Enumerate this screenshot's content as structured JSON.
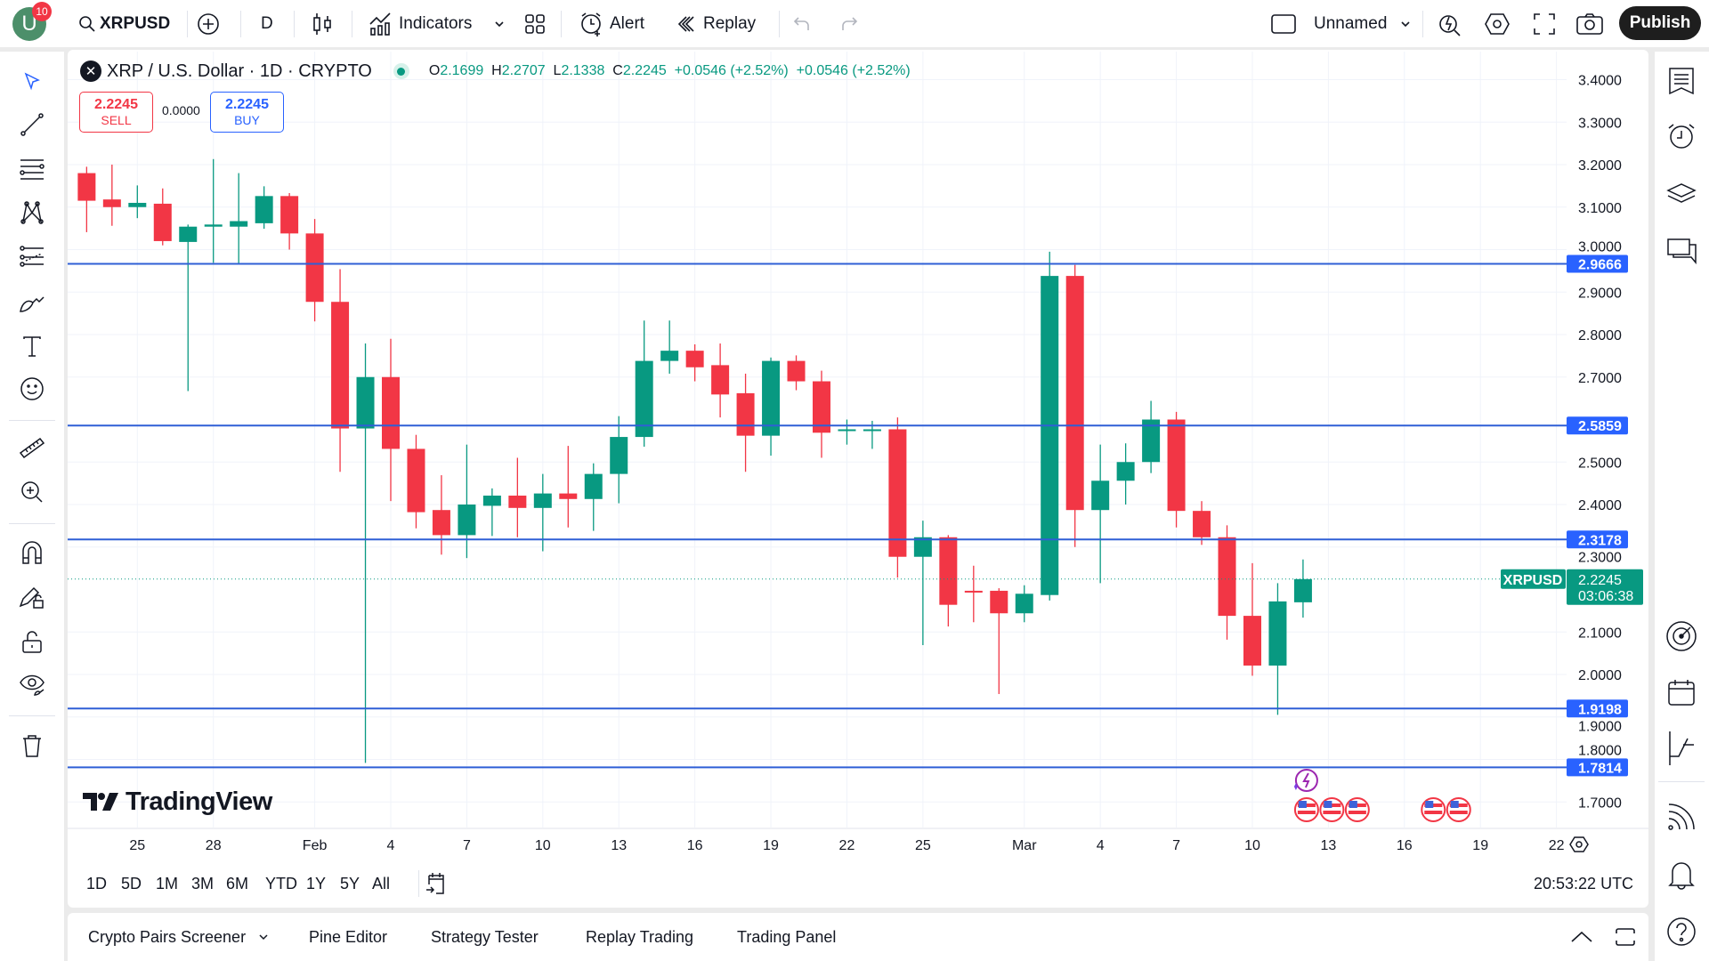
{
  "topbar": {
    "user_initial": "U",
    "notification_count": "10",
    "symbol": "XRPUSD",
    "interval": "D",
    "indicators": "Indicators",
    "alert": "Alert",
    "replay": "Replay",
    "layout_name": "Unnamed",
    "publish": "Publish"
  },
  "legend": {
    "symbol_title": "XRP / U.S. Dollar · 1D · CRYPTO",
    "o_label": "O",
    "open": "2.1699",
    "h_label": "H",
    "high": "2.2707",
    "l_label": "L",
    "low": "2.1338",
    "c_label": "C",
    "close": "2.2245",
    "change": "+0.0546 (+2.52%)",
    "change2": "+0.0546 (+2.52%)",
    "status_color": "#089981"
  },
  "trade": {
    "sell_price": "2.2245",
    "sell_label": "SELL",
    "spread": "0.0000",
    "buy_price": "2.2245",
    "buy_label": "BUY"
  },
  "logo": "TradingView",
  "chart_data": {
    "type": "candlestick",
    "fields": [
      "date",
      "open",
      "high",
      "low",
      "close"
    ],
    "candles": [
      [
        "Jan 23",
        3.18,
        3.195,
        3.041,
        3.115
      ],
      [
        "Jan 24",
        3.118,
        3.2,
        3.056,
        3.1
      ],
      [
        "Jan 25",
        3.1,
        3.151,
        3.074,
        3.11
      ],
      [
        "Jan 26",
        3.108,
        3.144,
        3.01,
        3.02
      ],
      [
        "Jan 27",
        3.018,
        3.059,
        2.667,
        3.054
      ],
      [
        "Jan 28",
        3.054,
        3.213,
        2.969,
        3.059
      ],
      [
        "Jan 29",
        3.054,
        3.18,
        2.967,
        3.067
      ],
      [
        "Jan 30",
        3.062,
        3.149,
        3.049,
        3.126
      ],
      [
        "Jan 31",
        3.126,
        3.133,
        3.0,
        3.038
      ],
      [
        "Feb 1",
        3.038,
        3.072,
        2.831,
        2.877
      ],
      [
        "Feb 2",
        2.877,
        2.954,
        2.477,
        2.579
      ],
      [
        "Feb 3",
        2.579,
        2.779,
        1.792,
        2.7
      ],
      [
        "Feb 4",
        2.7,
        2.79,
        2.408,
        2.531
      ],
      [
        "Feb 5",
        2.531,
        2.564,
        2.344,
        2.382
      ],
      [
        "Feb 6",
        2.387,
        2.469,
        2.282,
        2.328
      ],
      [
        "Feb 7",
        2.328,
        2.541,
        2.274,
        2.4
      ],
      [
        "Feb 8",
        2.397,
        2.438,
        2.326,
        2.421
      ],
      [
        "Feb 9",
        2.421,
        2.51,
        2.323,
        2.392
      ],
      [
        "Feb 10",
        2.392,
        2.472,
        2.29,
        2.426
      ],
      [
        "Feb 11",
        2.426,
        2.538,
        2.346,
        2.413
      ],
      [
        "Feb 12",
        2.413,
        2.497,
        2.338,
        2.472
      ],
      [
        "Feb 13",
        2.472,
        2.608,
        2.403,
        2.559
      ],
      [
        "Feb 14",
        2.559,
        2.833,
        2.536,
        2.738
      ],
      [
        "Feb 15",
        2.738,
        2.833,
        2.708,
        2.762
      ],
      [
        "Feb 16",
        2.762,
        2.777,
        2.69,
        2.723
      ],
      [
        "Feb 17",
        2.728,
        2.779,
        2.605,
        2.659
      ],
      [
        "Feb 18",
        2.662,
        2.708,
        2.477,
        2.562
      ],
      [
        "Feb 19",
        2.562,
        2.746,
        2.515,
        2.738
      ],
      [
        "Feb 20",
        2.738,
        2.751,
        2.669,
        2.69
      ],
      [
        "Feb 21",
        2.69,
        2.715,
        2.51,
        2.569
      ],
      [
        "Feb 22",
        2.574,
        2.6,
        2.541,
        2.577
      ],
      [
        "Feb 23",
        2.574,
        2.597,
        2.531,
        2.577
      ],
      [
        "Feb 24",
        2.577,
        2.605,
        2.228,
        2.277
      ],
      [
        "Feb 25",
        2.277,
        2.362,
        2.069,
        2.323
      ],
      [
        "Feb 26",
        2.323,
        2.328,
        2.113,
        2.164
      ],
      [
        "Feb 27",
        2.197,
        2.256,
        2.123,
        2.195
      ],
      [
        "Feb 28",
        2.197,
        2.203,
        1.954,
        2.144
      ],
      [
        "Mar 1",
        2.144,
        2.21,
        2.123,
        2.19
      ],
      [
        "Mar 2",
        2.187,
        2.995,
        2.174,
        2.938
      ],
      [
        "Mar 3",
        2.938,
        2.964,
        2.3,
        2.387
      ],
      [
        "Mar 4",
        2.387,
        2.541,
        2.215,
        2.456
      ],
      [
        "Mar 5",
        2.456,
        2.544,
        2.4,
        2.5
      ],
      [
        "Mar 6",
        2.5,
        2.644,
        2.474,
        2.6
      ],
      [
        "Mar 7",
        2.6,
        2.618,
        2.346,
        2.385
      ],
      [
        "Mar 8",
        2.385,
        2.408,
        2.305,
        2.323
      ],
      [
        "Mar 9",
        2.323,
        2.351,
        2.082,
        2.138
      ],
      [
        "Mar 10",
        2.138,
        2.262,
        1.997,
        2.021
      ],
      [
        "Mar 11",
        2.021,
        2.215,
        1.905,
        2.172
      ],
      [
        "Mar 12",
        2.1699,
        2.2707,
        2.1338,
        2.2245
      ]
    ],
    "y_ticks": [
      "3.4000",
      "3.3000",
      "3.2000",
      "3.1000",
      "3.0000",
      "2.9000",
      "2.8000",
      "2.7000",
      "2.5000",
      "2.4000",
      "2.3000",
      "2.1000",
      "2.0000",
      "1.9000",
      "1.8000",
      "1.7000"
    ],
    "ylim": [
      1.65,
      3.45
    ],
    "x_ticks": [
      {
        "date": "Jan 25",
        "label": "25"
      },
      {
        "date": "Jan 28",
        "label": "28"
      },
      {
        "date": "Feb 1",
        "label": "Feb"
      },
      {
        "date": "Feb 4",
        "label": "4"
      },
      {
        "date": "Feb 7",
        "label": "7"
      },
      {
        "date": "Feb 10",
        "label": "10"
      },
      {
        "date": "Feb 13",
        "label": "13"
      },
      {
        "date": "Feb 16",
        "label": "16"
      },
      {
        "date": "Feb 19",
        "label": "19"
      },
      {
        "date": "Feb 22",
        "label": "22"
      },
      {
        "date": "Feb 25",
        "label": "25"
      },
      {
        "date": "Mar 1",
        "label": "Mar"
      },
      {
        "date": "Mar 4",
        "label": "4"
      },
      {
        "date": "Mar 7",
        "label": "7"
      },
      {
        "date": "Mar 10",
        "label": "10"
      },
      {
        "date": "Mar 13",
        "label": "13"
      },
      {
        "date": "Mar 16",
        "label": "16"
      },
      {
        "date": "Mar 19",
        "label": "19"
      },
      {
        "date": "Mar 22",
        "label": "22"
      }
    ],
    "horizontal_lines": [
      "2.9666",
      "2.5859",
      "2.3178",
      "1.9198",
      "1.7814"
    ],
    "current_price": {
      "symbol": "XRPUSD",
      "price": "2.2245",
      "countdown": "03:06:38"
    },
    "events": {
      "ai_event_date": "Mar 12",
      "us_event_dates": [
        "Mar 12",
        "Mar 13",
        "Mar 14",
        "Mar 17",
        "Mar 18"
      ]
    },
    "grid": true
  },
  "range_bar": {
    "ranges": [
      "1D",
      "5D",
      "1M",
      "3M",
      "6M",
      "YTD",
      "1Y",
      "5Y",
      "All"
    ],
    "time": "20:53:22 UTC"
  },
  "bottom_tabs": [
    "Crypto Pairs Screener",
    "Pine Editor",
    "Strategy Tester",
    "Replay Trading",
    "Trading Panel"
  ],
  "colors": {
    "up": "#089981",
    "down": "#f23645",
    "line": "#2f5fd6",
    "accent": "#2962ff"
  }
}
